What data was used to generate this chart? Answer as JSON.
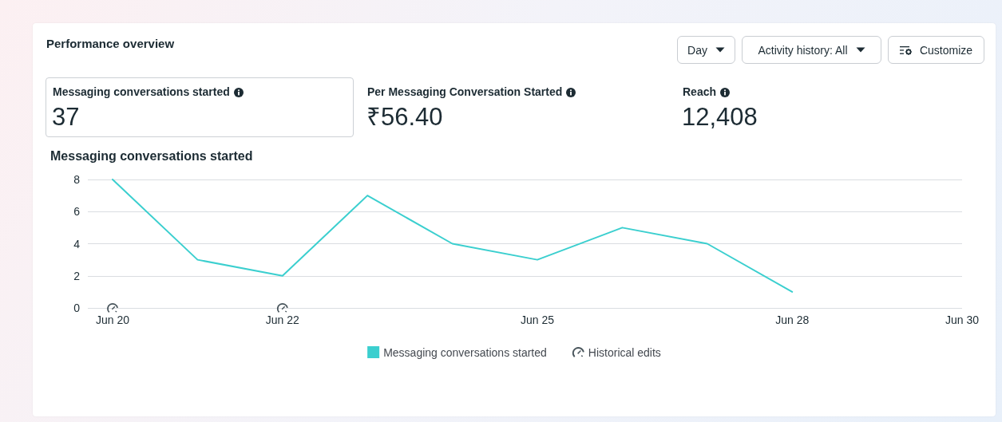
{
  "chart_data": [
    {
      "type": "other",
      "title": "Performance overview",
      "annotations": [
        "Day",
        "Activity history: All",
        "Customize",
        "Messaging conversations started",
        "37",
        "Per Messaging Conversation Started",
        "₹56.40",
        "Reach",
        "12,408"
      ]
    },
    {
      "type": "line",
      "title": "Messaging conversations started",
      "x": [
        "--06-20",
        "--06-21",
        "--06-22",
        "--06-23",
        "--06-24",
        "--06-25",
        "--06-26",
        "--06-27",
        "--06-28"
      ],
      "series": [
        {
          "name": "Messaging conversations started",
          "color": "#3bcfcf",
          "values": [
            8,
            3,
            2,
            7,
            4,
            3,
            5,
            4,
            1
          ]
        },
        {
          "name": "Historical edits",
          "type": "scatter",
          "color": "#1c2b33",
          "x": [
            "--06-20",
            "--06-22"
          ],
          "values": [
            0,
            0
          ]
        }
      ],
      "xlim": [
        "--06-19T17:00",
        "--06-30"
      ],
      "xticks": [
        {
          "value": "--06-20",
          "label": "Jun 20"
        },
        {
          "value": "--06-22",
          "label": "Jun 22"
        },
        {
          "value": "--06-25",
          "label": "Jun 25"
        },
        {
          "value": "--06-28",
          "label": "Jun 28"
        },
        {
          "value": "--06-30",
          "label": "Jun 30"
        }
      ],
      "ylim": [
        0,
        8
      ],
      "yticks": [
        0,
        2,
        4,
        6,
        8
      ],
      "grid": "y",
      "legend": "bottom",
      "marker": "none"
    }
  ]
}
